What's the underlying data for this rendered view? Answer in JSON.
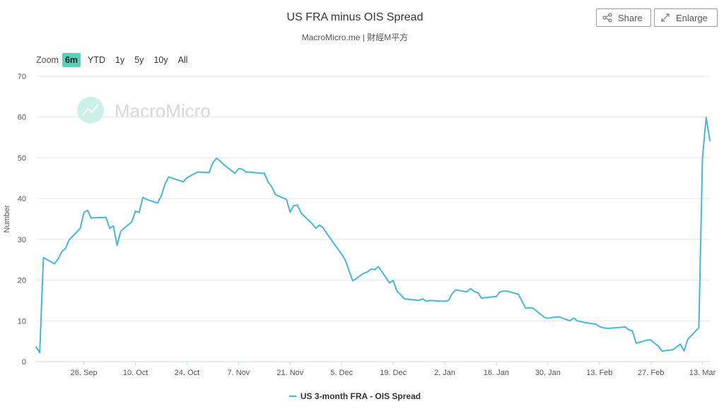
{
  "header": {
    "title": "US FRA minus OIS Spread",
    "subtitle": "MacroMicro.me | 財經M平方"
  },
  "toolbar": {
    "share_label": "Share",
    "enlarge_label": "Enlarge"
  },
  "zoom": {
    "label": "Zoom",
    "options": [
      "6m",
      "YTD",
      "1y",
      "5y",
      "10y",
      "All"
    ],
    "active": "6m"
  },
  "watermark": "MacroMicro",
  "colors": {
    "series": "#4ab5d8",
    "active_zoom": "#55d1b5",
    "grid": "#e6e6e6"
  },
  "chart_data": {
    "type": "line",
    "title": "US FRA minus OIS Spread",
    "subtitle": "MacroMicro.me | 財經M平方",
    "xlabel": "",
    "ylabel": "Number",
    "ylim": [
      0,
      70
    ],
    "yticks": [
      0,
      10,
      20,
      30,
      40,
      50,
      60,
      70
    ],
    "xticks": [
      "26. Sep",
      "10. Oct",
      "24. Oct",
      "7. Nov",
      "21. Nov",
      "5. Dec",
      "19. Dec",
      "2. Jan",
      "16. Jan",
      "30. Jan",
      "13. Feb",
      "27. Feb",
      "13. Mar"
    ],
    "grid": true,
    "legend_position": "bottom",
    "series": [
      {
        "name": "US 3-month FRA - OIS Spread",
        "x": [
          "2017-09-13",
          "2017-09-14",
          "2017-09-15",
          "2017-09-18",
          "2017-09-19",
          "2017-09-20",
          "2017-09-21",
          "2017-09-22",
          "2017-09-25",
          "2017-09-26",
          "2017-09-27",
          "2017-09-28",
          "2017-09-29",
          "2017-10-02",
          "2017-10-03",
          "2017-10-04",
          "2017-10-05",
          "2017-10-06",
          "2017-10-09",
          "2017-10-10",
          "2017-10-11",
          "2017-10-12",
          "2017-10-13",
          "2017-10-16",
          "2017-10-17",
          "2017-10-18",
          "2017-10-19",
          "2017-10-20",
          "2017-10-23",
          "2017-10-24",
          "2017-10-25",
          "2017-10-26",
          "2017-10-27",
          "2017-10-30",
          "2017-10-31",
          "2017-11-01",
          "2017-11-02",
          "2017-11-03",
          "2017-11-06",
          "2017-11-07",
          "2017-11-08",
          "2017-11-09",
          "2017-11-10",
          "2017-11-13",
          "2017-11-14",
          "2017-11-15",
          "2017-11-16",
          "2017-11-17",
          "2017-11-20",
          "2017-11-21",
          "2017-11-22",
          "2017-11-23",
          "2017-11-24",
          "2017-11-27",
          "2017-11-28",
          "2017-11-29",
          "2017-11-30",
          "2017-12-01",
          "2017-12-04",
          "2017-12-05",
          "2017-12-06",
          "2017-12-07",
          "2017-12-08",
          "2017-12-11",
          "2017-12-12",
          "2017-12-13",
          "2017-12-14",
          "2017-12-15",
          "2017-12-18",
          "2017-12-19",
          "2017-12-20",
          "2017-12-21",
          "2017-12-22",
          "2017-12-26",
          "2017-12-27",
          "2017-12-28",
          "2017-12-29",
          "2018-01-02",
          "2018-01-03",
          "2018-01-04",
          "2018-01-05",
          "2018-01-08",
          "2018-01-09",
          "2018-01-10",
          "2018-01-11",
          "2018-01-12",
          "2018-01-16",
          "2018-01-17",
          "2018-01-18",
          "2018-01-19",
          "2018-01-22",
          "2018-01-23",
          "2018-01-24",
          "2018-01-25",
          "2018-01-26",
          "2018-01-29",
          "2018-01-30",
          "2018-01-31",
          "2018-02-01",
          "2018-02-02",
          "2018-02-05",
          "2018-02-06",
          "2018-02-07",
          "2018-02-08",
          "2018-02-09",
          "2018-02-12",
          "2018-02-13",
          "2018-02-14",
          "2018-02-15",
          "2018-02-16",
          "2018-02-20",
          "2018-02-21",
          "2018-02-22",
          "2018-02-23",
          "2018-02-26",
          "2018-02-27",
          "2018-02-28",
          "2018-03-01",
          "2018-03-02",
          "2018-03-05",
          "2018-03-06",
          "2018-03-07",
          "2018-03-08",
          "2018-03-09",
          "2018-03-12",
          "2018-03-13",
          "2018-03-14",
          "2018-03-15"
        ],
        "values": [
          3.6,
          2.2,
          25.5,
          24,
          25.2,
          27,
          27.8,
          29.9,
          32.7,
          36.6,
          37.1,
          35.2,
          35.3,
          35.4,
          32.7,
          33.3,
          28.5,
          32,
          34.3,
          36.9,
          36.6,
          40.3,
          39.8,
          38.9,
          40.7,
          43.5,
          45.3,
          45,
          44.1,
          45.1,
          45.6,
          46.1,
          46.5,
          46.4,
          48.8,
          49.9,
          49.2,
          48.3,
          46.2,
          47.3,
          47.2,
          46.5,
          46.5,
          46.2,
          46.2,
          44.1,
          42.9,
          41,
          39.8,
          36.7,
          38.3,
          38.4,
          36.4,
          33.8,
          32.7,
          33.5,
          32.8,
          31.4,
          27.6,
          26.4,
          24.9,
          22.3,
          19.8,
          21.7,
          22,
          22.7,
          22.6,
          23.3,
          19.3,
          19.9,
          17.3,
          16.4,
          15.4,
          15,
          15.4,
          14.8,
          15,
          14.8,
          15,
          16.7,
          17.6,
          17.1,
          17.9,
          17.2,
          16.9,
          15.6,
          16,
          17.1,
          17.3,
          17.3,
          16.5,
          14.8,
          13.1,
          13.2,
          13.1,
          10.9,
          10.6,
          10.8,
          10.9,
          11,
          10,
          10.7,
          10,
          9.8,
          9.6,
          9.2,
          8.6,
          8.3,
          8.2,
          8.2,
          8.5,
          7.8,
          7.5,
          4.5,
          5.3,
          5.3,
          4.5,
          3.8,
          2.6,
          2.9,
          3.6,
          4.3,
          2.6,
          5.5,
          8.3,
          50,
          59.9,
          54.2
        ]
      }
    ]
  }
}
